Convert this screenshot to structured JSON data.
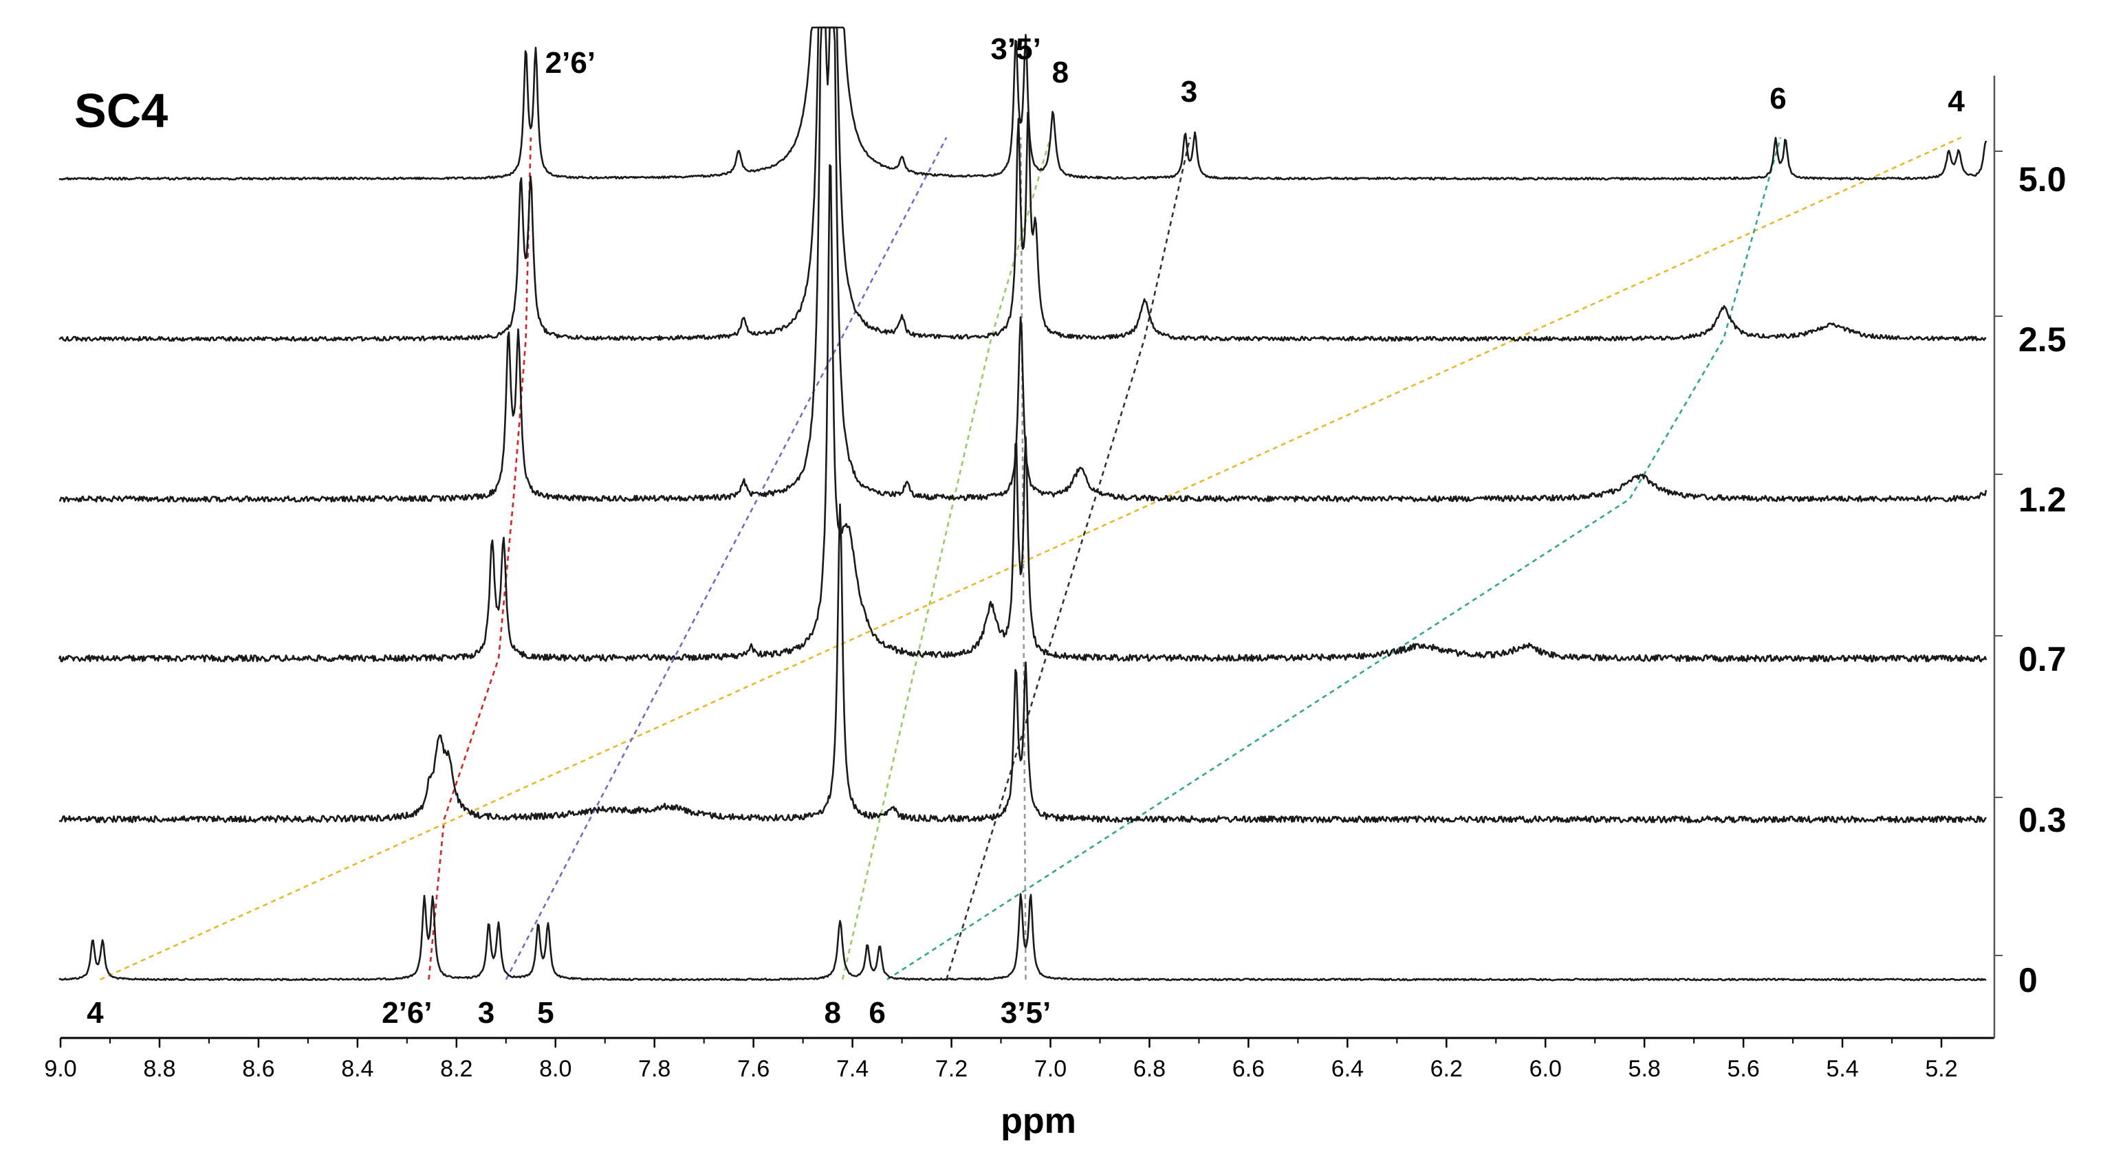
{
  "chart_data": {
    "type": "line",
    "title": "SC4",
    "xlabel": "ppm",
    "xlim": [
      9.0,
      5.1
    ],
    "x_reversed": true,
    "x_ticks": [
      "9.0",
      "8.8",
      "8.6",
      "8.4",
      "8.2",
      "8.0",
      "7.8",
      "7.6",
      "7.4",
      "7.2",
      "7.0",
      "6.8",
      "6.6",
      "6.4",
      "6.2",
      "6.0",
      "5.8",
      "5.6",
      "5.4",
      "5.2"
    ],
    "grid": false,
    "series": [
      {
        "name": "0",
        "peaks": [
          {
            "ppm": 8.935,
            "h": 0.22,
            "w": 0.005
          },
          {
            "ppm": 8.915,
            "h": 0.22,
            "w": 0.005
          },
          {
            "ppm": 8.265,
            "h": 0.45,
            "w": 0.005
          },
          {
            "ppm": 8.248,
            "h": 0.45,
            "w": 0.005
          },
          {
            "ppm": 8.135,
            "h": 0.31,
            "w": 0.005
          },
          {
            "ppm": 8.115,
            "h": 0.31,
            "w": 0.005
          },
          {
            "ppm": 8.035,
            "h": 0.31,
            "w": 0.005
          },
          {
            "ppm": 8.015,
            "h": 0.31,
            "w": 0.005
          },
          {
            "ppm": 7.425,
            "h": 0.34,
            "w": 0.006
          },
          {
            "ppm": 7.37,
            "h": 0.19,
            "w": 0.005
          },
          {
            "ppm": 7.345,
            "h": 0.19,
            "w": 0.005
          },
          {
            "ppm": 7.06,
            "h": 0.47,
            "w": 0.005
          },
          {
            "ppm": 7.04,
            "h": 0.47,
            "w": 0.005
          }
        ]
      },
      {
        "name": "0.3",
        "peaks": [
          {
            "ppm": 8.235,
            "h": 0.4,
            "w": 0.012
          },
          {
            "ppm": 8.215,
            "h": 0.26,
            "w": 0.012
          },
          {
            "ppm": 8.255,
            "h": 0.12,
            "w": 0.006
          },
          {
            "ppm": 7.425,
            "h": 1.82,
            "w": 0.006
          },
          {
            "ppm": 7.9,
            "h": 0.05,
            "w": 0.08
          },
          {
            "ppm": 7.77,
            "h": 0.06,
            "w": 0.05
          },
          {
            "ppm": 7.32,
            "h": 0.06,
            "w": 0.01
          },
          {
            "ppm": 7.07,
            "h": 0.85,
            "w": 0.005
          },
          {
            "ppm": 7.05,
            "h": 0.85,
            "w": 0.005
          }
        ]
      },
      {
        "name": "0.7",
        "peaks": [
          {
            "ppm": 8.128,
            "h": 0.66,
            "w": 0.006
          },
          {
            "ppm": 8.105,
            "h": 0.66,
            "w": 0.006
          },
          {
            "ppm": 7.445,
            "h": 2.7,
            "w": 0.006
          },
          {
            "ppm": 7.41,
            "h": 0.7,
            "w": 0.025
          },
          {
            "ppm": 7.605,
            "h": 0.06,
            "w": 0.006
          },
          {
            "ppm": 7.12,
            "h": 0.29,
            "w": 0.015
          },
          {
            "ppm": 7.07,
            "h": 1.2,
            "w": 0.005
          },
          {
            "ppm": 7.05,
            "h": 1.2,
            "w": 0.005
          },
          {
            "ppm": 6.25,
            "h": 0.07,
            "w": 0.06
          },
          {
            "ppm": 6.04,
            "h": 0.07,
            "w": 0.03
          }
        ]
      },
      {
        "name": "1.2",
        "peaks": [
          {
            "ppm": 8.095,
            "h": 0.9,
            "w": 0.006
          },
          {
            "ppm": 8.075,
            "h": 0.9,
            "w": 0.006
          },
          {
            "ppm": 7.46,
            "h": 3.1,
            "w": 0.008
          },
          {
            "ppm": 7.44,
            "h": 3.1,
            "w": 0.008
          },
          {
            "ppm": 7.62,
            "h": 0.1,
            "w": 0.006
          },
          {
            "ppm": 7.29,
            "h": 0.09,
            "w": 0.006
          },
          {
            "ppm": 7.06,
            "h": 1.05,
            "w": 0.006
          },
          {
            "ppm": 6.94,
            "h": 0.17,
            "w": 0.018
          },
          {
            "ppm": 5.81,
            "h": 0.13,
            "w": 0.04
          },
          {
            "ppm": 5.1,
            "h": 0.05,
            "w": 0.02
          }
        ]
      },
      {
        "name": "2.5",
        "peaks": [
          {
            "ppm": 8.07,
            "h": 0.88,
            "w": 0.006
          },
          {
            "ppm": 8.05,
            "h": 0.88,
            "w": 0.006
          },
          {
            "ppm": 7.46,
            "h": 3.1,
            "w": 0.009
          },
          {
            "ppm": 7.44,
            "h": 3.1,
            "w": 0.009
          },
          {
            "ppm": 7.62,
            "h": 0.11,
            "w": 0.006
          },
          {
            "ppm": 7.3,
            "h": 0.11,
            "w": 0.006
          },
          {
            "ppm": 7.065,
            "h": 1.2,
            "w": 0.005
          },
          {
            "ppm": 7.045,
            "h": 1.2,
            "w": 0.005
          },
          {
            "ppm": 7.03,
            "h": 0.55,
            "w": 0.006
          },
          {
            "ppm": 6.81,
            "h": 0.22,
            "w": 0.012
          },
          {
            "ppm": 5.64,
            "h": 0.18,
            "w": 0.018
          },
          {
            "ppm": 5.42,
            "h": 0.08,
            "w": 0.04
          }
        ]
      },
      {
        "name": "5.0",
        "peaks": [
          {
            "ppm": 8.06,
            "h": 0.72,
            "w": 0.005
          },
          {
            "ppm": 8.04,
            "h": 0.72,
            "w": 0.005
          },
          {
            "ppm": 7.46,
            "h": 3.1,
            "w": 0.012
          },
          {
            "ppm": 7.44,
            "h": 3.1,
            "w": 0.012
          },
          {
            "ppm": 7.63,
            "h": 0.14,
            "w": 0.006
          },
          {
            "ppm": 7.3,
            "h": 0.09,
            "w": 0.006
          },
          {
            "ppm": 7.07,
            "h": 0.78,
            "w": 0.005
          },
          {
            "ppm": 7.05,
            "h": 0.78,
            "w": 0.005
          },
          {
            "ppm": 6.995,
            "h": 0.38,
            "w": 0.006
          },
          {
            "ppm": 6.728,
            "h": 0.25,
            "w": 0.005
          },
          {
            "ppm": 6.708,
            "h": 0.25,
            "w": 0.005
          },
          {
            "ppm": 5.535,
            "h": 0.22,
            "w": 0.005
          },
          {
            "ppm": 5.515,
            "h": 0.22,
            "w": 0.005
          },
          {
            "ppm": 5.185,
            "h": 0.15,
            "w": 0.006
          },
          {
            "ppm": 5.165,
            "h": 0.15,
            "w": 0.006
          },
          {
            "ppm": 5.11,
            "h": 0.22,
            "w": 0.006
          }
        ]
      }
    ],
    "peak_labels_bottom": [
      {
        "text": "4",
        "ppm": 8.93
      },
      {
        "text": "2’6’",
        "ppm": 8.3
      },
      {
        "text": "3",
        "ppm": 8.14
      },
      {
        "text": "5",
        "ppm": 8.02
      },
      {
        "text": "8",
        "ppm": 7.44
      },
      {
        "text": "6",
        "ppm": 7.35
      },
      {
        "text": "3’5’",
        "ppm": 7.05
      }
    ],
    "peak_labels_top": [
      {
        "text": "2’6’",
        "ppm": 7.97
      },
      {
        "text": "3’5’",
        "ppm": 7.07
      },
      {
        "text": "8",
        "ppm": 6.98
      },
      {
        "text": "3",
        "ppm": 6.72
      },
      {
        "text": "6",
        "ppm": 5.53
      },
      {
        "text": "4",
        "ppm": 5.17
      }
    ],
    "guides": [
      {
        "color": "#e02020",
        "ppm": [
          8.256,
          8.225,
          8.115,
          8.085,
          8.06,
          8.05
        ]
      },
      {
        "color": "#e8b828",
        "ppm": [
          8.92,
          5.16
        ]
      },
      {
        "color": "#6f6ad0",
        "ppm": [
          8.1,
          7.21
        ]
      },
      {
        "color": "#333333",
        "ppm": [
          7.21,
          6.81,
          6.718
        ]
      },
      {
        "color": "#9acb62",
        "ppm": [
          7.42,
          7.12,
          7.0
        ]
      },
      {
        "color": "#2fa88a",
        "ppm": [
          7.33,
          5.83,
          5.64,
          5.525
        ]
      },
      {
        "color": "#999999",
        "ppm": [
          7.05,
          7.06
        ]
      }
    ]
  }
}
